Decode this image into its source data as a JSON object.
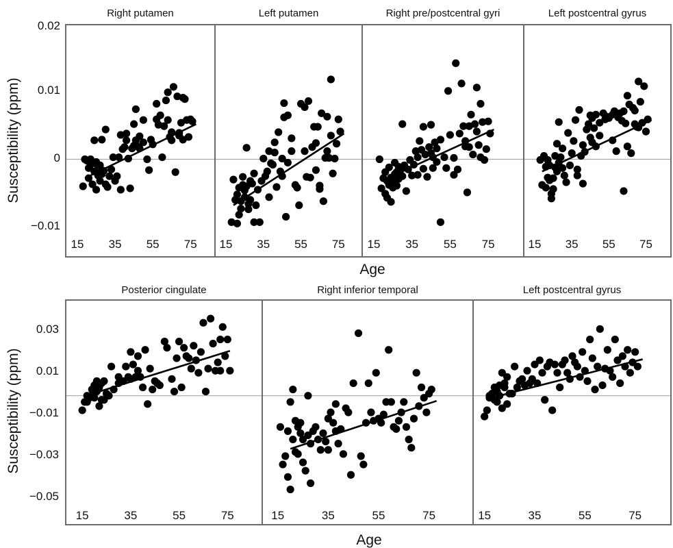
{
  "figure": {
    "row1": {
      "ylabel": "Susceptibility (ppm)",
      "xlabel": "Age"
    },
    "row2": {
      "ylabel": "Susceptibility (ppm)",
      "xlabel": "Age"
    }
  },
  "chart_data": [
    {
      "type": "scatter",
      "title": "Right putamen",
      "xlabel": "Age",
      "ylabel": "Susceptibility (ppm)",
      "xlim": [
        15,
        80
      ],
      "ylim": [
        -0.012,
        0.02
      ],
      "xticks": [
        15,
        35,
        55,
        75
      ],
      "yticks": [
        -0.01,
        0,
        0.01,
        0.02
      ],
      "ytick_labels": [
        "−0.01",
        "0",
        "0.01",
        "0.02"
      ],
      "fit": {
        "x": [
          19,
          78
        ],
        "y": [
          -0.0028,
          0.0052
        ]
      },
      "x": [
        18,
        19,
        20,
        21,
        21,
        22,
        22,
        23,
        23,
        24,
        24,
        25,
        25,
        26,
        26,
        27,
        27,
        28,
        28,
        29,
        30,
        30,
        31,
        32,
        33,
        34,
        35,
        36,
        37,
        38,
        38,
        39,
        40,
        41,
        41,
        42,
        43,
        44,
        45,
        45,
        46,
        46,
        47,
        48,
        48,
        50,
        50,
        52,
        53,
        54,
        55,
        57,
        57,
        58,
        59,
        60,
        61,
        62,
        63,
        63,
        64,
        65,
        65,
        66,
        67,
        68,
        69,
        69,
        70,
        71,
        71,
        72,
        73,
        74,
        75,
        76
      ],
      "y": [
        -0.004,
        0.0,
        -0.0002,
        -0.0013,
        -0.0028,
        0.0,
        -0.0008,
        -0.0037,
        -0.0006,
        -0.0018,
        0.0028,
        -0.0004,
        -0.0045,
        -0.0024,
        -0.0012,
        -0.0009,
        -0.0032,
        -0.0022,
        0.0029,
        -0.0017,
        0.0044,
        -0.0037,
        -0.0041,
        -0.0025,
        -0.0015,
        0.0003,
        -0.0032,
        -0.0025,
        0.0003,
        0.0036,
        -0.0045,
        0.0015,
        0.0018,
        0.0038,
        0.0028,
        0.0001,
        -0.0043,
        0.0016,
        0.0052,
        0.002,
        0.0074,
        0.0028,
        0.0019,
        0.0034,
        0.0016,
        0.0058,
        0.0025,
        0.0,
        -0.0016,
        0.0029,
        0.0022,
        0.0059,
        0.0082,
        0.0051,
        0.0065,
        0.0003,
        0.0049,
        0.0087,
        0.0099,
        0.0058,
        0.0033,
        0.004,
        0.0028,
        0.0107,
        -0.0019,
        0.0093,
        0.0035,
        0.0039,
        0.0054,
        0.0029,
        0.0091,
        0.0089,
        0.0058,
        0.0033,
        0.0059,
        0.0056
      ]
    },
    {
      "type": "scatter",
      "title": "Left putamen",
      "xlabel": "Age",
      "ylabel": "Susceptibility (ppm)",
      "xlim": [
        15,
        80
      ],
      "ylim": [
        -0.012,
        0.02
      ],
      "xticks": [
        15,
        35,
        55,
        75
      ],
      "yticks": [
        -0.01,
        0,
        0.01,
        0.02
      ],
      "fit": {
        "x": [
          19,
          78
        ],
        "y": [
          -0.0068,
          0.0038
        ]
      },
      "x": [
        18,
        19,
        20,
        21,
        21,
        22,
        22,
        23,
        23,
        24,
        24,
        25,
        25,
        26,
        26,
        27,
        27,
        28,
        28,
        29,
        30,
        30,
        31,
        32,
        33,
        34,
        35,
        36,
        37,
        38,
        38,
        39,
        40,
        41,
        41,
        42,
        43,
        44,
        45,
        45,
        46,
        46,
        47,
        48,
        48,
        50,
        50,
        52,
        53,
        54,
        55,
        57,
        57,
        58,
        59,
        60,
        61,
        62,
        63,
        63,
        64,
        65,
        65,
        66,
        67,
        68,
        69,
        69,
        70,
        71,
        71,
        72,
        73,
        74,
        75,
        76
      ],
      "y": [
        -0.0093,
        -0.003,
        -0.006,
        -0.0052,
        -0.0095,
        -0.0082,
        -0.0042,
        -0.0062,
        -0.0073,
        -0.0038,
        -0.0026,
        -0.0056,
        -0.0046,
        0.0017,
        -0.004,
        -0.0074,
        -0.0066,
        -0.0032,
        -0.006,
        -0.0036,
        -0.0093,
        -0.0021,
        -0.0068,
        -0.0045,
        -0.0093,
        -0.0032,
        0.0001,
        -0.0025,
        -0.0018,
        0.0012,
        -0.0056,
        -0.0006,
        -0.0008,
        0.0025,
        0.001,
        -0.0041,
        0.004,
        -0.0018,
        0.0001,
        -0.0025,
        0.0062,
        0.0083,
        -0.0085,
        0.0065,
        -0.0005,
        0.0031,
        0.0012,
        -0.0038,
        -0.0042,
        -0.0068,
        0.0082,
        0.0077,
        0.0012,
        -0.0026,
        0.0086,
        -0.0027,
        0.0018,
        0.0048,
        0.0024,
        -0.0016,
        0.0048,
        -0.0039,
        -0.0044,
        0.0068,
        -0.0062,
        0.0002,
        0.0012,
        0.0063,
        0.0002,
        0.0035,
        0.0118,
        -0.0021,
        0.0001,
        0.0023,
        0.0059,
        0.0041
      ]
    },
    {
      "type": "scatter",
      "title": "Right pre/postcentral gyri",
      "xlabel": "Age",
      "ylabel": "Susceptibility (ppm)",
      "xlim": [
        15,
        80
      ],
      "ylim": [
        -0.012,
        0.02
      ],
      "xticks": [
        15,
        35,
        55,
        75
      ],
      "yticks": [
        -0.01,
        0,
        0.01,
        0.02
      ],
      "fit": {
        "x": [
          19,
          78
        ],
        "y": [
          -0.0032,
          0.0044
        ]
      },
      "x": [
        18,
        19,
        20,
        21,
        21,
        22,
        22,
        23,
        23,
        24,
        24,
        25,
        25,
        26,
        26,
        27,
        27,
        28,
        28,
        29,
        30,
        30,
        31,
        32,
        33,
        34,
        35,
        36,
        37,
        38,
        38,
        39,
        40,
        41,
        41,
        42,
        43,
        44,
        45,
        45,
        46,
        46,
        47,
        48,
        48,
        50,
        50,
        52,
        53,
        54,
        55,
        57,
        57,
        58,
        59,
        60,
        61,
        62,
        63,
        63,
        64,
        65,
        65,
        66,
        67,
        68,
        69,
        69,
        70,
        71,
        71,
        72,
        73,
        74,
        75,
        76
      ],
      "y": [
        0.0,
        -0.0043,
        -0.0028,
        -0.0019,
        -0.0051,
        -0.0032,
        -0.0057,
        -0.0012,
        -0.0038,
        -0.0027,
        -0.0063,
        -0.0042,
        -0.0033,
        -0.0022,
        -0.0005,
        -0.0019,
        -0.0039,
        -0.0011,
        -0.0029,
        -0.0016,
        0.0052,
        -0.0025,
        -0.0009,
        -0.0047,
        -0.0015,
        -0.0001,
        -0.0024,
        -0.0008,
        0.0012,
        -0.0023,
        0.0003,
        0.0027,
        0.0014,
        -0.0014,
        0.0048,
        0.0007,
        -0.0026,
        0.0018,
        0.0009,
        0.0051,
        0.0003,
        -0.0013,
        0.0025,
        0.0016,
        -0.0004,
        0.0029,
        -0.0093,
        0.0003,
        -0.0013,
        0.0101,
        0.0036,
        -0.0023,
        0.0002,
        0.0142,
        -0.0015,
        0.0038,
        0.0112,
        0.0049,
        0.0027,
        0.0019,
        -0.0049,
        0.0049,
        0.0018,
        0.0066,
        0.0007,
        0.0052,
        0.0041,
        0.0106,
        0.0021,
        0.0003,
        0.0082,
        0.0055,
        -0.0001,
        0.0015,
        0.0056,
        0.0038
      ]
    },
    {
      "type": "scatter",
      "title": "Left postcentral gyrus",
      "xlabel": "Age",
      "ylabel": "Susceptibility (ppm)",
      "xlim": [
        15,
        80
      ],
      "ylim": [
        -0.012,
        0.02
      ],
      "xticks": [
        15,
        35,
        55,
        75
      ],
      "yticks": [
        -0.01,
        0,
        0.01,
        0.02
      ],
      "fit": {
        "x": [
          19,
          78
        ],
        "y": [
          -0.0018,
          0.0058
        ]
      },
      "x": [
        18,
        19,
        20,
        21,
        21,
        22,
        22,
        23,
        23,
        24,
        24,
        25,
        25,
        26,
        26,
        27,
        27,
        28,
        28,
        29,
        30,
        30,
        31,
        32,
        33,
        34,
        35,
        36,
        37,
        38,
        38,
        39,
        40,
        41,
        41,
        42,
        43,
        44,
        45,
        45,
        46,
        46,
        47,
        48,
        48,
        50,
        50,
        52,
        53,
        54,
        55,
        57,
        57,
        58,
        59,
        60,
        61,
        62,
        63,
        63,
        64,
        65,
        65,
        66,
        67,
        68,
        69,
        69,
        70,
        71,
        71,
        72,
        73,
        74,
        75,
        76
      ],
      "y": [
        -0.0001,
        -0.0038,
        0.0005,
        -0.0011,
        -0.0042,
        -0.0001,
        -0.0027,
        -0.0009,
        -0.0031,
        -0.0051,
        -0.0058,
        -0.0044,
        -0.0028,
        0.0005,
        -0.0012,
        0.0023,
        -0.0018,
        0.0055,
        -0.0005,
        0.0003,
        0.0016,
        -0.0013,
        -0.0024,
        -0.0034,
        0.0039,
        -0.0009,
        0.0009,
        0.0027,
        0.0058,
        -0.0015,
        -0.0024,
        0.0073,
        0.0005,
        0.0021,
        -0.0036,
        0.0011,
        0.0044,
        0.0052,
        0.0032,
        0.0065,
        0.0061,
        0.0025,
        0.0046,
        0.0066,
        0.0019,
        0.0054,
        0.0035,
        0.0068,
        0.0059,
        0.0063,
        0.0061,
        0.0028,
        0.0066,
        0.0071,
        0.0012,
        0.0062,
        0.0068,
        0.0057,
        0.0071,
        -0.0047,
        0.0053,
        0.0019,
        0.0094,
        0.0081,
        0.0009,
        0.0076,
        0.0052,
        0.0072,
        0.0048,
        0.0115,
        0.0047,
        0.0085,
        0.0054,
        0.0108,
        0.0041,
        0.0059
      ]
    },
    {
      "type": "scatter",
      "title": "Posterior cingulate",
      "xlabel": "Age",
      "ylabel": "Susceptibility (ppm)",
      "xlim": [
        11,
        80
      ],
      "ylim": [
        -0.056,
        0.04
      ],
      "xticks": [
        15,
        35,
        55,
        75
      ],
      "yticks": [
        -0.05,
        -0.03,
        -0.01,
        0.01,
        0.03
      ],
      "ytick_labels": [
        "−0.05",
        "−0.03",
        "−0.01",
        "0.01",
        "0.03"
      ],
      "fit": {
        "x": [
          16,
          76
        ],
        "y": [
          -0.0002,
          0.0215
        ]
      },
      "x": [
        15,
        16,
        17,
        17,
        18,
        19,
        19,
        20,
        20,
        21,
        21,
        22,
        22,
        23,
        23,
        24,
        24,
        25,
        26,
        27,
        28,
        30,
        30,
        32,
        33,
        34,
        35,
        35,
        36,
        37,
        38,
        38,
        39,
        40,
        41,
        42,
        43,
        44,
        45,
        46,
        47,
        49,
        50,
        52,
        53,
        54,
        55,
        56,
        57,
        58,
        59,
        60,
        61,
        62,
        63,
        64,
        65,
        66,
        67,
        68,
        69,
        70,
        71,
        72,
        72,
        73,
        74,
        75,
        76
      ],
      "y": [
        -0.007,
        -0.003,
        -0.003,
        0.0,
        -0.001,
        0.0,
        0.003,
        0.005,
        -0.001,
        0.007,
        0.002,
        0.004,
        -0.005,
        0.006,
        -0.002,
        0.007,
        -0.002,
        0.001,
        0.0,
        0.014,
        0.003,
        0.009,
        0.006,
        0.007,
        0.014,
        0.009,
        0.021,
        0.008,
        0.015,
        0.009,
        0.019,
        0.012,
        0.009,
        0.004,
        0.022,
        -0.004,
        0.013,
        0.003,
        0.007,
        0.006,
        0.005,
        0.026,
        0.023,
        0.008,
        0.002,
        0.018,
        0.026,
        0.004,
        0.023,
        0.019,
        0.018,
        0.013,
        0.024,
        0.017,
        0.011,
        0.021,
        0.035,
        0.002,
        0.013,
        0.037,
        0.025,
        0.012,
        0.016,
        0.027,
        0.012,
        0.033,
        0.019,
        0.027,
        0.012
      ]
    },
    {
      "type": "scatter",
      "title": "Right inferior temporal",
      "xlabel": "Age",
      "ylabel": "Susceptibility (ppm)",
      "xlim": [
        11,
        80
      ],
      "ylim": [
        -0.056,
        0.04
      ],
      "xticks": [
        15,
        35,
        55,
        75
      ],
      "yticks": [
        -0.05,
        -0.03,
        -0.01,
        0.01,
        0.03
      ],
      "fit": {
        "x": [
          20,
          78
        ],
        "y": [
          -0.0255,
          -0.0025
        ]
      },
      "x": [
        16,
        17,
        18,
        19,
        19,
        20,
        20,
        21,
        21,
        22,
        22,
        23,
        23,
        24,
        24,
        25,
        25,
        26,
        27,
        27,
        28,
        28,
        29,
        30,
        31,
        32,
        33,
        34,
        35,
        35,
        36,
        37,
        38,
        38,
        39,
        40,
        41,
        42,
        43,
        44,
        45,
        47,
        48,
        49,
        50,
        51,
        52,
        53,
        54,
        55,
        56,
        57,
        58,
        59,
        60,
        61,
        62,
        63,
        64,
        65,
        66,
        67,
        68,
        69,
        70,
        71,
        72,
        73,
        74,
        75,
        76
      ],
      "y": [
        -0.015,
        -0.033,
        -0.029,
        -0.017,
        -0.039,
        -0.003,
        -0.045,
        0.003,
        -0.021,
        -0.012,
        -0.027,
        -0.028,
        -0.015,
        -0.018,
        -0.013,
        -0.032,
        -0.021,
        -0.036,
        -0.019,
        0.0,
        -0.042,
        -0.023,
        -0.017,
        -0.015,
        -0.021,
        -0.026,
        -0.018,
        -0.022,
        -0.011,
        -0.026,
        -0.008,
        -0.013,
        -0.017,
        -0.004,
        -0.023,
        -0.016,
        -0.028,
        -0.006,
        -0.008,
        -0.038,
        0.006,
        0.03,
        -0.029,
        -0.033,
        -0.013,
        0.006,
        -0.008,
        -0.012,
        0.011,
        -0.011,
        -0.013,
        -0.009,
        -0.003,
        0.022,
        -0.003,
        -0.015,
        -0.016,
        -0.012,
        -0.008,
        -0.003,
        -0.015,
        -0.021,
        -0.025,
        -0.011,
        0.011,
        -0.005,
        0.004,
        -0.001,
        -0.008,
        0.001,
        0.003
      ]
    },
    {
      "type": "scatter",
      "title": "Left postcentral gyrus",
      "xlabel": "Age",
      "ylabel": "Susceptibility (ppm)",
      "xlim": [
        11,
        80
      ],
      "ylim": [
        -0.056,
        0.04
      ],
      "xticks": [
        15,
        35,
        55,
        75
      ],
      "yticks": [
        -0.05,
        -0.03,
        -0.01,
        0.01,
        0.03
      ],
      "fit": {
        "x": [
          16,
          78
        ],
        "y": [
          -0.0015,
          0.0175
        ]
      },
      "x": [
        15,
        16,
        17,
        17,
        18,
        19,
        19,
        20,
        20,
        21,
        21,
        22,
        22,
        23,
        23,
        24,
        24,
        25,
        26,
        27,
        28,
        29,
        30,
        31,
        32,
        33,
        34,
        35,
        36,
        37,
        38,
        39,
        40,
        41,
        42,
        43,
        44,
        45,
        46,
        47,
        48,
        49,
        50,
        51,
        52,
        53,
        54,
        55,
        56,
        57,
        58,
        59,
        60,
        61,
        62,
        63,
        64,
        65,
        66,
        67,
        68,
        69,
        70,
        71,
        72,
        73,
        74,
        75,
        76
      ],
      "y": [
        -0.01,
        -0.007,
        0.0,
        -0.001,
        0.001,
        -0.002,
        0.004,
        0.002,
        -0.003,
        0.005,
        0.0,
        0.011,
        -0.006,
        0.006,
        0.004,
        0.009,
        -0.004,
        0.001,
        0.001,
        0.014,
        0.004,
        0.007,
        0.008,
        0.005,
        0.012,
        0.006,
        0.008,
        0.015,
        0.006,
        0.017,
        0.011,
        -0.002,
        0.014,
        0.016,
        -0.007,
        0.015,
        0.011,
        0.004,
        0.015,
        0.017,
        0.011,
        0.008,
        0.019,
        0.016,
        0.014,
        0.009,
        0.021,
        0.012,
        0.007,
        0.027,
        0.018,
        0.003,
        0.014,
        0.032,
        0.005,
        0.013,
        0.022,
        0.012,
        0.009,
        0.027,
        0.017,
        0.006,
        0.019,
        0.014,
        0.022,
        0.011,
        0.016,
        0.021,
        0.014
      ]
    }
  ]
}
